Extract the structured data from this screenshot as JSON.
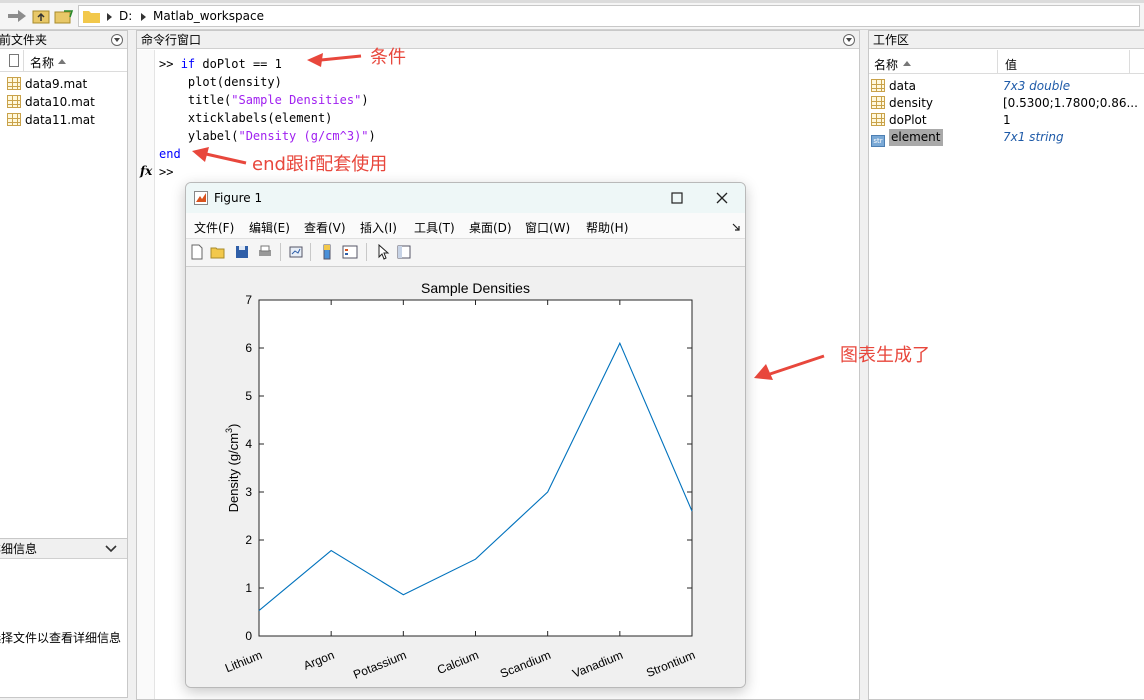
{
  "address_bar": {
    "drive": "D:",
    "folder": "Matlab_workspace"
  },
  "file_panel": {
    "title": "当前文件夹",
    "column": "名称",
    "files": [
      "data9.mat",
      "data10.mat",
      "data11.mat"
    ]
  },
  "detail_panel": {
    "title": "详细信息",
    "hint": "选择文件以查看详细信息"
  },
  "command_window": {
    "title": "命令行窗口",
    "prompt": ">>",
    "fx": "fx",
    "lines": {
      "if_kw": "if",
      "if_rest": " doPlot == 1",
      "plot": "plot(density)",
      "title_fn": "title(",
      "title_str": "\"Sample Densities\"",
      "close": ")",
      "xtick": "xticklabels(element)",
      "ylabel_fn": "ylabel(",
      "ylabel_str": "\"Density (g/cm^3)\"",
      "end_kw": "end"
    }
  },
  "annotations": {
    "condition": "条件",
    "end_note": "end跟if配套使用",
    "chart_note": "图表生成了"
  },
  "workspace": {
    "title": "工作区",
    "col_name": "名称",
    "col_value": "值",
    "vars": [
      {
        "name": "data",
        "value": "7x3 double",
        "icon": "mat-grid-icon"
      },
      {
        "name": "density",
        "value": "[0.5300;1.7800;0.86...",
        "icon": "mat-grid-icon"
      },
      {
        "name": "doPlot",
        "value": "1",
        "icon": "mat-grid-icon"
      },
      {
        "name": "element",
        "value": "7x1 string",
        "icon": "string-icon"
      }
    ]
  },
  "figure": {
    "window_title": "Figure 1",
    "menu": [
      "文件(F)",
      "编辑(E)",
      "查看(V)",
      "插入(I)",
      "工具(T)",
      "桌面(D)",
      "窗口(W)",
      "帮助(H)"
    ]
  },
  "chart_data": {
    "type": "line",
    "title": "Sample Densities",
    "xlabel": "",
    "ylabel": "Density (g/cm",
    "ylabel_sup": "3",
    "ylabel_end": ")",
    "categories": [
      "Lithium",
      "Argon",
      "Potassium",
      "Calcium",
      "Scandium",
      "Vanadium",
      "Strontium"
    ],
    "values": [
      0.53,
      1.78,
      0.86,
      1.6,
      3.0,
      6.1,
      2.6
    ],
    "ylim": [
      0,
      7
    ],
    "yticks": [
      0,
      1,
      2,
      3,
      4,
      5,
      6,
      7
    ],
    "line_color": "#0072bd",
    "grid": false
  }
}
